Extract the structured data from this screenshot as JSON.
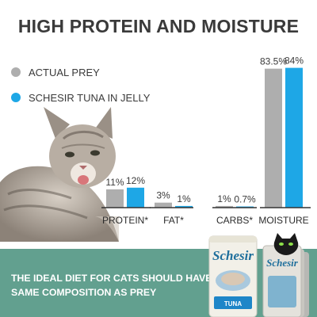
{
  "header": {
    "title": "HIGH PROTEIN AND MOISTURE"
  },
  "colors": {
    "actual_prey": "#aeaeae",
    "schesir": "#1ea7e6",
    "banner": "#62a08f",
    "axis": "#333333"
  },
  "chart_data": {
    "type": "bar",
    "title": "HIGH PROTEIN AND MOISTURE",
    "categories": [
      "PROTEIN*",
      "FAT*",
      "CARBS*",
      "MOISTURE"
    ],
    "series": [
      {
        "name": "ACTUAL PREY",
        "values": [
          11,
          3,
          1,
          83.5
        ],
        "labels": [
          "11%",
          "3%",
          "1%",
          "83.5%"
        ]
      },
      {
        "name": "SCHESIR TUNA IN JELLY",
        "values": [
          12,
          1,
          0.7,
          84
        ],
        "labels": [
          "12%",
          "1%",
          "0.7%",
          "84%"
        ]
      }
    ],
    "legend_position": "top-left",
    "grid": false
  },
  "banner": {
    "text": "THE IDEAL DIET FOR CATS SHOULD HAVE THE SAME COMPOSITION AS PREY"
  },
  "products": {
    "brand": "Schesir",
    "variant": "TUNA"
  },
  "icons": [
    "cat-photo",
    "product-pouch-icon",
    "black-cat-logo-icon"
  ]
}
